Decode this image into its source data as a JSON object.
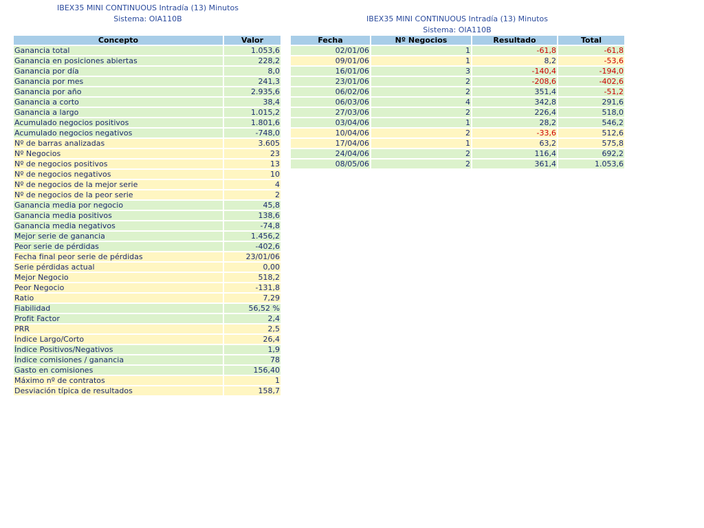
{
  "left": {
    "title": "IBEX35 MINI CONTINUOUS Intradía (13) Minutos",
    "subtitle": "Sistema: OIA110B",
    "columns": [
      "Concepto",
      "Valor"
    ],
    "rows": [
      [
        "Ganancia total",
        "1.053,6"
      ],
      [
        "Ganancia en posiciones abiertas",
        "228,2"
      ],
      [
        "Ganancia por día",
        "8,0"
      ],
      [
        "Ganancia por mes",
        "241,3"
      ],
      [
        "Ganancia por año",
        "2.935,6"
      ],
      [
        "Ganancia a corto",
        "38,4"
      ],
      [
        "Ganancia a largo",
        "1.015,2"
      ],
      [
        "Acumulado negocios positivos",
        "1.801,6"
      ],
      [
        "Acumulado negocios negativos",
        "-748,0"
      ],
      [
        "Nº de barras analizadas",
        "3.605"
      ],
      [
        "Nº Negocios",
        "23"
      ],
      [
        "Nº de negocios positivos",
        "13"
      ],
      [
        "Nº de negocios negativos",
        "10"
      ],
      [
        "Nº de negocios de la mejor serie",
        "4"
      ],
      [
        "Nº de negocios de la peor serie",
        "2"
      ],
      [
        "Ganancia media por negocio",
        "45,8"
      ],
      [
        "Ganancia media positivos",
        "138,6"
      ],
      [
        "Ganancia media negativos",
        "-74,8"
      ],
      [
        "Mejor serie de ganancia",
        "1.456,2"
      ],
      [
        "Peor serie de pérdidas",
        "-402,6"
      ],
      [
        "Fecha final peor serie de pérdidas",
        "23/01/06"
      ],
      [
        "Serie pérdidas actual",
        "0,00"
      ],
      [
        "Mejor Negocio",
        "518,2"
      ],
      [
        "Peor Negocio",
        "-131,8"
      ],
      [
        "Ratio",
        "7,29"
      ],
      [
        "Fiabilidad",
        "56,52 %"
      ],
      [
        "Profit Factor",
        "2,4"
      ],
      [
        "PRR",
        "2,5"
      ],
      [
        "Índice Largo/Corto",
        "26,4"
      ],
      [
        "Índice Positivos/Negativos",
        "1,9"
      ],
      [
        "Índice comisiones / ganancia",
        "78"
      ],
      [
        "Gasto en comisiones",
        "156,40"
      ],
      [
        "Máximo nº de contratos",
        "1"
      ],
      [
        "Desviación típica de resultados",
        "158,7"
      ]
    ]
  },
  "right": {
    "title": "IBEX35 MINI CONTINUOUS Intradía (13) Minutos",
    "subtitle": "Sistema: OIA110B",
    "columns": [
      "Fecha",
      "Nº Negocios",
      "Resultado",
      "Total"
    ],
    "rows": [
      [
        "02/01/06",
        "1",
        "-61,8",
        "-61,8"
      ],
      [
        "09/01/06",
        "1",
        "8,2",
        "-53,6"
      ],
      [
        "16/01/06",
        "3",
        "-140,4",
        "-194,0"
      ],
      [
        "23/01/06",
        "2",
        "-208,6",
        "-402,6"
      ],
      [
        "06/02/06",
        "2",
        "351,4",
        "-51,2"
      ],
      [
        "06/03/06",
        "4",
        "342,8",
        "291,6"
      ],
      [
        "27/03/06",
        "2",
        "226,4",
        "518,0"
      ],
      [
        "03/04/06",
        "1",
        "28,2",
        "546,2"
      ],
      [
        "10/04/06",
        "2",
        "-33,6",
        "512,6"
      ],
      [
        "17/04/06",
        "1",
        "63,2",
        "575,8"
      ],
      [
        "24/04/06",
        "2",
        "116,4",
        "692,2"
      ],
      [
        "08/05/06",
        "2",
        "361,4",
        "1.053,6"
      ]
    ]
  }
}
